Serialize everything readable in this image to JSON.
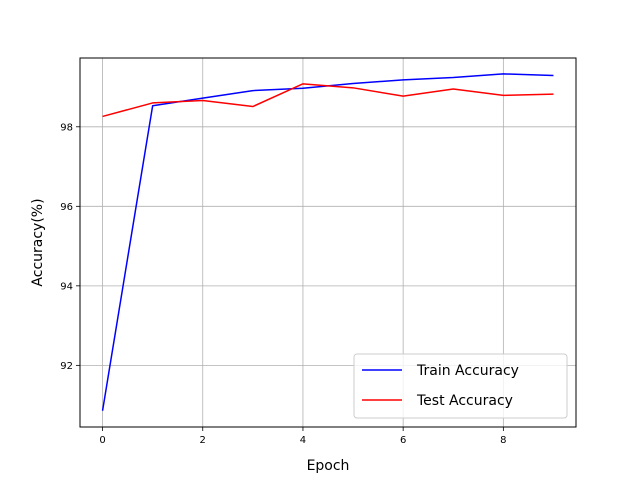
{
  "chart_data": {
    "type": "line",
    "title": "",
    "xlabel": "Epoch",
    "ylabel": "Accuracy(%)",
    "x": [
      0,
      1,
      2,
      3,
      4,
      5,
      6,
      7,
      8,
      9
    ],
    "xlim": [
      -0.45,
      9.45
    ],
    "ylim": [
      90.45,
      99.73
    ],
    "xticks": [
      0,
      2,
      4,
      6,
      8
    ],
    "yticks": [
      92,
      94,
      96,
      98
    ],
    "xtick_labels": [
      "0",
      "2",
      "4",
      "6",
      "8"
    ],
    "ytick_labels": [
      "92",
      "94",
      "96",
      "98"
    ],
    "grid": true,
    "legend_position": "bottom-right",
    "series": [
      {
        "name": "Train Accuracy",
        "color": "#0000ff",
        "values": [
          90.86,
          98.53,
          98.72,
          98.91,
          98.97,
          99.09,
          99.18,
          99.24,
          99.33,
          99.29
        ]
      },
      {
        "name": "Test Accuracy",
        "color": "#ff0000",
        "values": [
          98.26,
          98.6,
          98.66,
          98.51,
          99.08,
          98.98,
          98.77,
          98.95,
          98.79,
          98.82
        ]
      }
    ]
  }
}
